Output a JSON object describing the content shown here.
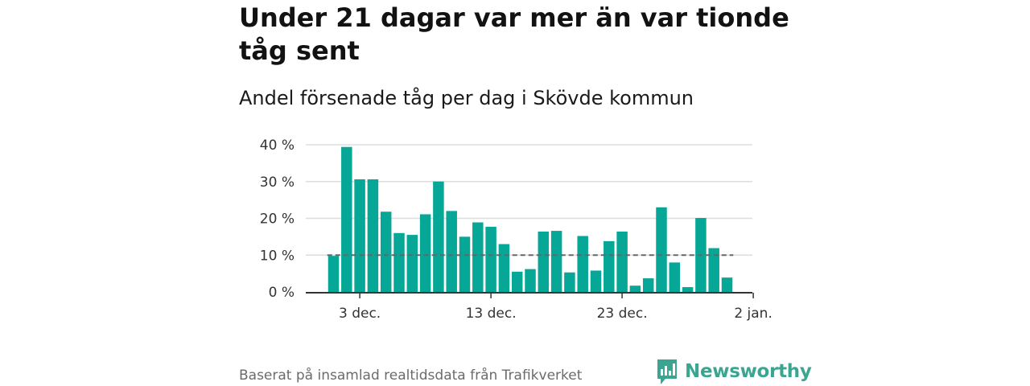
{
  "title": "Under 21 dagar var mer än var tionde tåg sent",
  "subtitle": "Andel försenade tåg per dag i Skövde kommun",
  "source": "Baserat på insamlad realtidsdata från Trafikverket",
  "brand": "Newsworthy",
  "colors": {
    "bar": "#07a797",
    "reference": "#666666",
    "grid": "#dddddd",
    "brand": "#3aa591"
  },
  "chart_data": {
    "type": "bar",
    "title": "Andel försenade tåg per dag i Skövde kommun",
    "xlabel": "",
    "ylabel": "",
    "ylim": [
      0,
      40
    ],
    "y_ticks": [
      0,
      10,
      20,
      30,
      40
    ],
    "y_tick_labels": [
      "0 %",
      "10 %",
      "20 %",
      "30 %",
      "40 %"
    ],
    "x_tick_labels": [
      "3 dec.",
      "13 dec.",
      "23 dec.",
      "2 jan."
    ],
    "x_tick_dates": [
      "2022-12-03",
      "2022-12-13",
      "2022-12-23",
      "2023-01-02"
    ],
    "grid": true,
    "categories": [
      "2022-12-01",
      "2022-12-02",
      "2022-12-03",
      "2022-12-04",
      "2022-12-05",
      "2022-12-06",
      "2022-12-07",
      "2022-12-08",
      "2022-12-09",
      "2022-12-10",
      "2022-12-11",
      "2022-12-12",
      "2022-12-13",
      "2022-12-14",
      "2022-12-15",
      "2022-12-16",
      "2022-12-17",
      "2022-12-18",
      "2022-12-19",
      "2022-12-20",
      "2022-12-21",
      "2022-12-22",
      "2022-12-23",
      "2022-12-24",
      "2022-12-25",
      "2022-12-26",
      "2022-12-27",
      "2022-12-28",
      "2022-12-29",
      "2022-12-30",
      "2022-12-31"
    ],
    "values": [
      9.8,
      39.4,
      30.6,
      30.6,
      21.8,
      16.0,
      15.5,
      21.1,
      30.0,
      22.0,
      15.0,
      18.9,
      17.7,
      13.0,
      5.5,
      6.2,
      16.4,
      16.6,
      5.3,
      15.2,
      5.8,
      13.8,
      16.4,
      1.7,
      3.7,
      23.0,
      8.0,
      1.3,
      20.1,
      11.9,
      3.9
    ],
    "reference_line": {
      "value": 10,
      "style": "dashed"
    }
  }
}
